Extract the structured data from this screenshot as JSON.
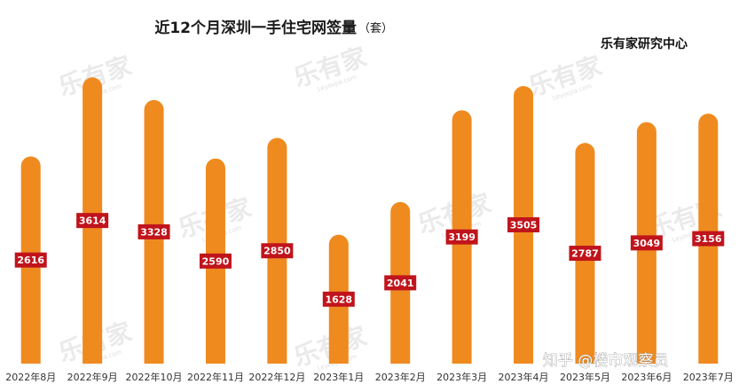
{
  "chart_data": {
    "type": "bar",
    "title": "近12个月深圳一手住宅网签量",
    "unit": "（套）",
    "source": "乐有家研究中心",
    "categories": [
      "2022年8月",
      "2022年9月",
      "2022年10月",
      "2022年11月",
      "2022年12月",
      "2023年1月",
      "2023年2月",
      "2023年3月",
      "2023年4月",
      "2023年5月",
      "2023年6月",
      "2023年7月"
    ],
    "values": [
      2616,
      3614,
      3328,
      2590,
      2850,
      1628,
      2041,
      3199,
      3505,
      2787,
      3049,
      3156
    ],
    "labels": [
      "2616",
      "3614",
      "3328",
      "2590",
      "2850",
      "1628",
      "2041",
      "3199",
      "3505",
      "2787",
      "3049",
      "3156"
    ],
    "ylim": [
      0,
      4000
    ],
    "grid": false,
    "legend": false
  },
  "colors": {
    "bar": "#ef8a1f",
    "label_bg": "#c0141c",
    "watermark": "#d9d9d9"
  },
  "watermark": {
    "text": "乐有家",
    "sub": "Leyoujia.com"
  },
  "overlay": {
    "zhihu": "知乎 @楼市观察员"
  }
}
